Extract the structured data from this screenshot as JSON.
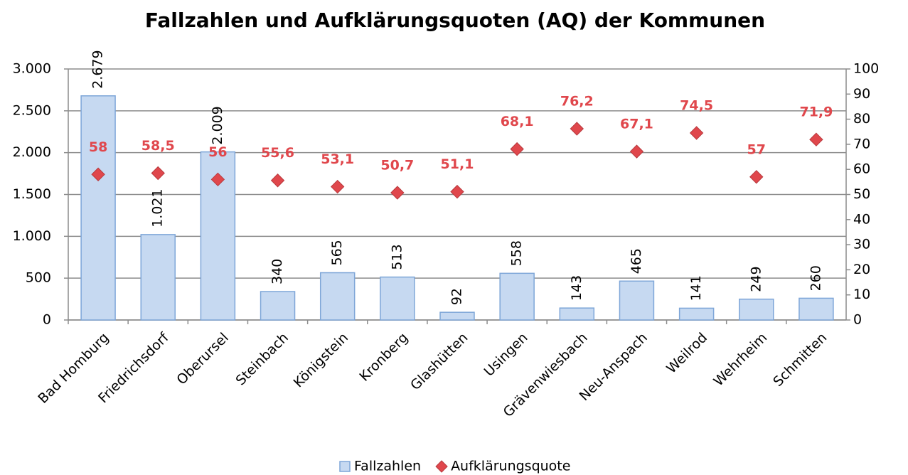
{
  "chart_data": {
    "type": "bar",
    "title": "Fallzahlen und Aufklärungsquoten (AQ) der Kommunen",
    "categories": [
      "Bad Homburg",
      "Friedrichsdorf",
      "Oberursel",
      "Steinbach",
      "Königstein",
      "Kronberg",
      "Glashütten",
      "Usingen",
      "Grävenwiesbach",
      "Neu-Anspach",
      "Weilrod",
      "Wehrheim",
      "Schmitten"
    ],
    "series": [
      {
        "name": "Fallzahlen",
        "type": "bar",
        "axis": "y",
        "color": "#c6d9f1",
        "edge": "#7ea6d8",
        "values": [
          2679,
          1021,
          2009,
          340,
          565,
          513,
          92,
          558,
          143,
          465,
          141,
          249,
          260
        ],
        "value_labels": [
          "2.679",
          "1.021",
          "2.009",
          "340",
          "565",
          "513",
          "92",
          "558",
          "143",
          "465",
          "141",
          "249",
          "260"
        ]
      },
      {
        "name": "Aufklärungsquote",
        "type": "scatter",
        "axis": "y2",
        "color": "#e0474c",
        "values": [
          58,
          58.5,
          56,
          55.6,
          53.1,
          50.7,
          51.1,
          68.1,
          76.2,
          67.1,
          74.5,
          57,
          71.9
        ],
        "value_labels": [
          "58",
          "58,5",
          "56",
          "55,6",
          "53,1",
          "50,7",
          "51,1",
          "68,1",
          "76,2",
          "67,1",
          "74,5",
          "57",
          "71,9"
        ]
      }
    ],
    "ylim": [
      0,
      3000
    ],
    "yticks": [
      0,
      500,
      {
        "value": 1000,
        "label": "1.000"
      },
      {
        "value": 1500,
        "label": "1.500"
      },
      {
        "value": 2000,
        "label": "2.000"
      },
      {
        "value": 2500,
        "label": "2.500"
      },
      {
        "value": 3000,
        "label": "3.000"
      }
    ],
    "y2lim": [
      0,
      100
    ],
    "y2ticks": [
      0,
      10,
      20,
      30,
      40,
      50,
      60,
      70,
      80,
      90,
      100
    ],
    "grid": true,
    "legend": "bottom"
  }
}
